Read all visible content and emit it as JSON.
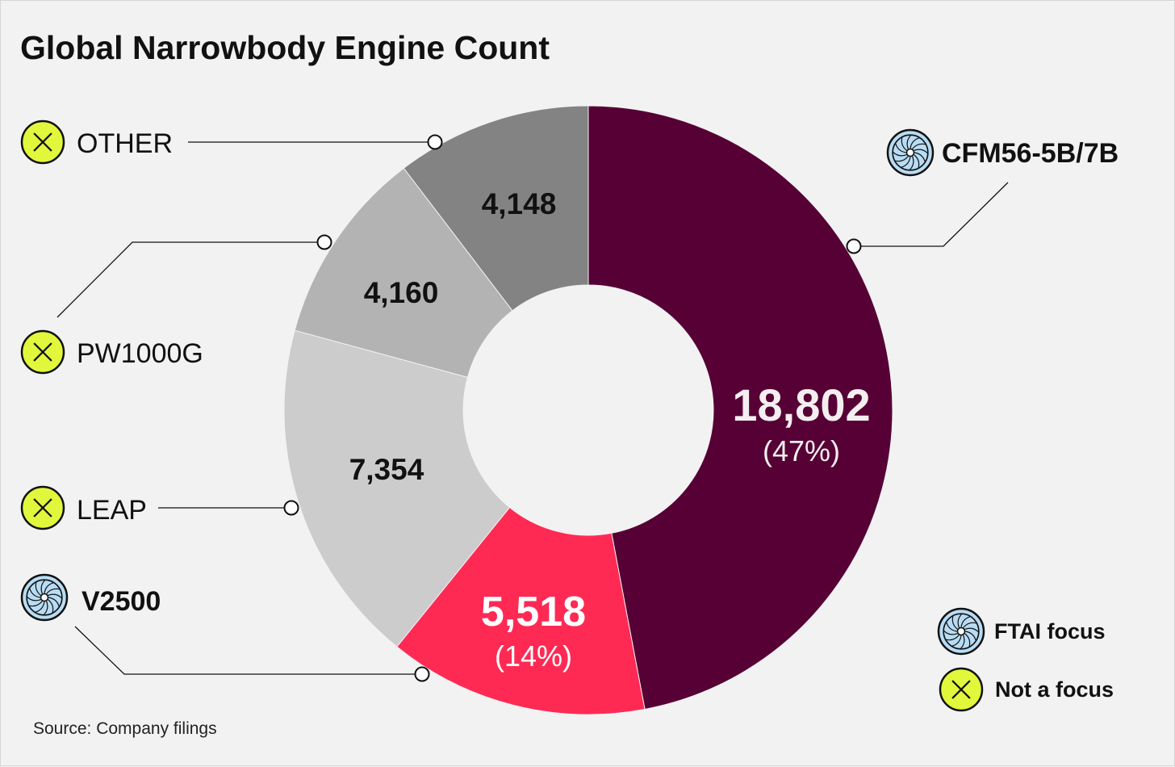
{
  "title": "Global Narrowbody Engine Count",
  "source": "Source: Company filings",
  "legend": [
    {
      "label": "FTAI focus",
      "icon": "fan-icon"
    },
    {
      "label": "Not a focus",
      "icon": "x-circle-icon"
    }
  ],
  "colors": {
    "background": "#f2f2f2",
    "cfm": "#560035",
    "v2500": "#ff2a54",
    "leap": "#cccccc",
    "pw1000g": "#b3b3b3",
    "other": "#838383",
    "focus_icon": "#b8dcf4",
    "not_focus_icon": "#e1f73c"
  },
  "chart_data": {
    "type": "pie",
    "title": "Global Narrowbody Engine Count",
    "series": [
      {
        "name": "CFM56-5B/7B",
        "value": 18802,
        "value_label": "18,802",
        "pct_label": "(47%)",
        "focus": true
      },
      {
        "name": "V2500",
        "value": 5518,
        "value_label": "5,518",
        "pct_label": "(14%)",
        "focus": true
      },
      {
        "name": "LEAP",
        "value": 7354,
        "value_label": "7,354",
        "pct_label": "",
        "focus": false
      },
      {
        "name": "PW1000G",
        "value": 4160,
        "value_label": "4,160",
        "pct_label": "",
        "focus": false
      },
      {
        "name": "OTHER",
        "value": 4148,
        "value_label": "4,148",
        "pct_label": "",
        "focus": false
      }
    ]
  }
}
